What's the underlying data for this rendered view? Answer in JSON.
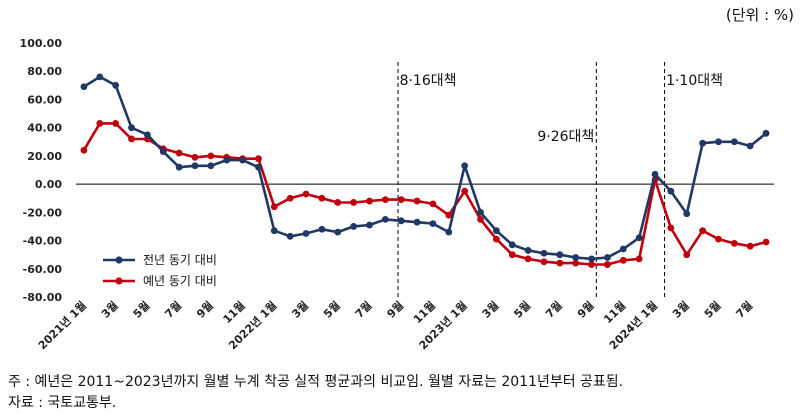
{
  "unit_label": "(단위 : %)",
  "note": "주 : 예년은 2011~2023년까지 월별 누계 착공 실적 평균과의 비교임. 월별 자료는 2011년부터 공표됨.",
  "source": "자료 : 국토교통부.",
  "chart_data": {
    "type": "line",
    "title": "",
    "xlabel": "",
    "ylabel": "",
    "ylim": [
      -80,
      100
    ],
    "y_ticks": [
      "100.00",
      "80.00",
      "60.00",
      "40.00",
      "20.00",
      "0.00",
      "-20.00",
      "-40.00",
      "-60.00",
      "-80.00"
    ],
    "x_tick_labels": [
      {
        "index": 0,
        "label": "2021년 1월"
      },
      {
        "index": 2,
        "label": "3월"
      },
      {
        "index": 4,
        "label": "5월"
      },
      {
        "index": 6,
        "label": "7월"
      },
      {
        "index": 8,
        "label": "9월"
      },
      {
        "index": 10,
        "label": "11월"
      },
      {
        "index": 12,
        "label": "2022년 1월"
      },
      {
        "index": 14,
        "label": "3월"
      },
      {
        "index": 16,
        "label": "5월"
      },
      {
        "index": 18,
        "label": "7월"
      },
      {
        "index": 20,
        "label": "9월"
      },
      {
        "index": 22,
        "label": "11월"
      },
      {
        "index": 24,
        "label": "2023년 1월"
      },
      {
        "index": 26,
        "label": "3월"
      },
      {
        "index": 28,
        "label": "5월"
      },
      {
        "index": 30,
        "label": "7월"
      },
      {
        "index": 32,
        "label": "9월"
      },
      {
        "index": 34,
        "label": "11월"
      },
      {
        "index": 36,
        "label": "2024년 1월"
      },
      {
        "index": 38,
        "label": "3월"
      },
      {
        "index": 40,
        "label": "5월"
      },
      {
        "index": 42,
        "label": "7월"
      }
    ],
    "annotations": [
      {
        "label": "8·16대책",
        "index": 19.8
      },
      {
        "label": "9·26대책",
        "index": 32.3
      },
      {
        "label": "1·10대책",
        "index": 36.6
      }
    ],
    "legend_position": "bottom-left",
    "grid": false,
    "series": [
      {
        "name": "전년 동기 대비",
        "color": "#1f3864",
        "values": [
          69,
          76,
          70,
          40,
          35,
          23,
          12,
          13,
          13,
          17,
          17,
          12,
          -33,
          -37,
          -35,
          -32,
          -34,
          -30,
          -29,
          -25,
          -26,
          -27,
          -28,
          -34,
          13,
          -20,
          -33,
          -43,
          -47,
          -49,
          -50,
          -52,
          -53,
          -52,
          -46,
          -38,
          7,
          -5,
          -21,
          29,
          30,
          30,
          27,
          36
        ]
      },
      {
        "name": "예년 동기 대비",
        "color": "#c0000c",
        "values": [
          24,
          43,
          43,
          32,
          32,
          25,
          22,
          19,
          20,
          19,
          18,
          18,
          -16,
          -10,
          -7,
          -10,
          -13,
          -13,
          -12,
          -11,
          -11,
          -12,
          -14,
          -22,
          -5,
          -25,
          -39,
          -50,
          -53,
          -55,
          -56,
          -56,
          -57,
          -57,
          -54,
          -53,
          3,
          -31,
          -50,
          -33,
          -39,
          -42,
          -44,
          -41
        ]
      }
    ]
  }
}
